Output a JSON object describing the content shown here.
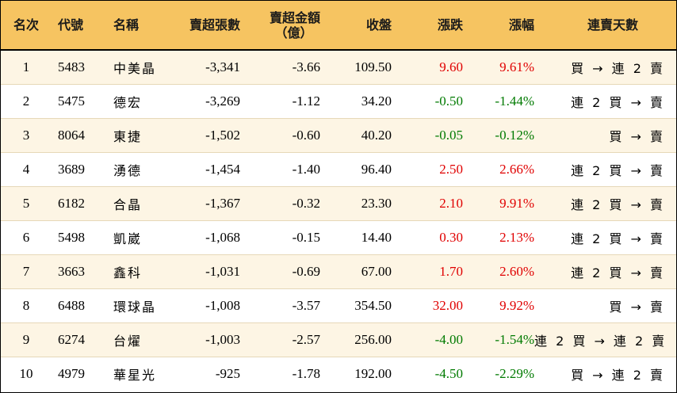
{
  "headers": {
    "rank": "名次",
    "code": "代號",
    "name": "名稱",
    "net_sell_shares": "賣超張數",
    "net_sell_amount": "賣超金額",
    "net_sell_amount_unit": "（億）",
    "close": "收盤",
    "change": "漲跌",
    "change_pct": "漲幅",
    "consecutive": "連賣天數"
  },
  "colors": {
    "header_bg": "#F6C461",
    "odd_row_bg": "#FDF5E4",
    "up": "#E00000",
    "down": "#007A00"
  },
  "rows": [
    {
      "rank": "1",
      "code": "5483",
      "name": "中美晶",
      "shares": "-3,341",
      "amount": "-3.66",
      "close": "109.50",
      "change": "9.60",
      "pct": "9.61%",
      "dir": "up",
      "days": "買 → 連 2 賣"
    },
    {
      "rank": "2",
      "code": "5475",
      "name": "德宏",
      "shares": "-3,269",
      "amount": "-1.12",
      "close": "34.20",
      "change": "-0.50",
      "pct": "-1.44%",
      "dir": "down",
      "days": "連 2 買 → 賣"
    },
    {
      "rank": "3",
      "code": "8064",
      "name": "東捷",
      "shares": "-1,502",
      "amount": "-0.60",
      "close": "40.20",
      "change": "-0.05",
      "pct": "-0.12%",
      "dir": "down",
      "days": "買 → 賣"
    },
    {
      "rank": "4",
      "code": "3689",
      "name": "湧德",
      "shares": "-1,454",
      "amount": "-1.40",
      "close": "96.40",
      "change": "2.50",
      "pct": "2.66%",
      "dir": "up",
      "days": "連 2 買 → 賣"
    },
    {
      "rank": "5",
      "code": "6182",
      "name": "合晶",
      "shares": "-1,367",
      "amount": "-0.32",
      "close": "23.30",
      "change": "2.10",
      "pct": "9.91%",
      "dir": "up",
      "days": "連 2 買 → 賣"
    },
    {
      "rank": "6",
      "code": "5498",
      "name": "凱崴",
      "shares": "-1,068",
      "amount": "-0.15",
      "close": "14.40",
      "change": "0.30",
      "pct": "2.13%",
      "dir": "up",
      "days": "連 2 買 → 賣"
    },
    {
      "rank": "7",
      "code": "3663",
      "name": "鑫科",
      "shares": "-1,031",
      "amount": "-0.69",
      "close": "67.00",
      "change": "1.70",
      "pct": "2.60%",
      "dir": "up",
      "days": "連 2 買 → 賣"
    },
    {
      "rank": "8",
      "code": "6488",
      "name": "環球晶",
      "shares": "-1,008",
      "amount": "-3.57",
      "close": "354.50",
      "change": "32.00",
      "pct": "9.92%",
      "dir": "up",
      "days": "買 → 賣"
    },
    {
      "rank": "9",
      "code": "6274",
      "name": "台燿",
      "shares": "-1,003",
      "amount": "-2.57",
      "close": "256.00",
      "change": "-4.00",
      "pct": "-1.54%",
      "dir": "down",
      "days": "連 2 買 → 連 2 賣"
    },
    {
      "rank": "10",
      "code": "4979",
      "name": "華星光",
      "shares": "-925",
      "amount": "-1.78",
      "close": "192.00",
      "change": "-4.50",
      "pct": "-2.29%",
      "dir": "down",
      "days": "買 → 連 2 賣"
    }
  ]
}
